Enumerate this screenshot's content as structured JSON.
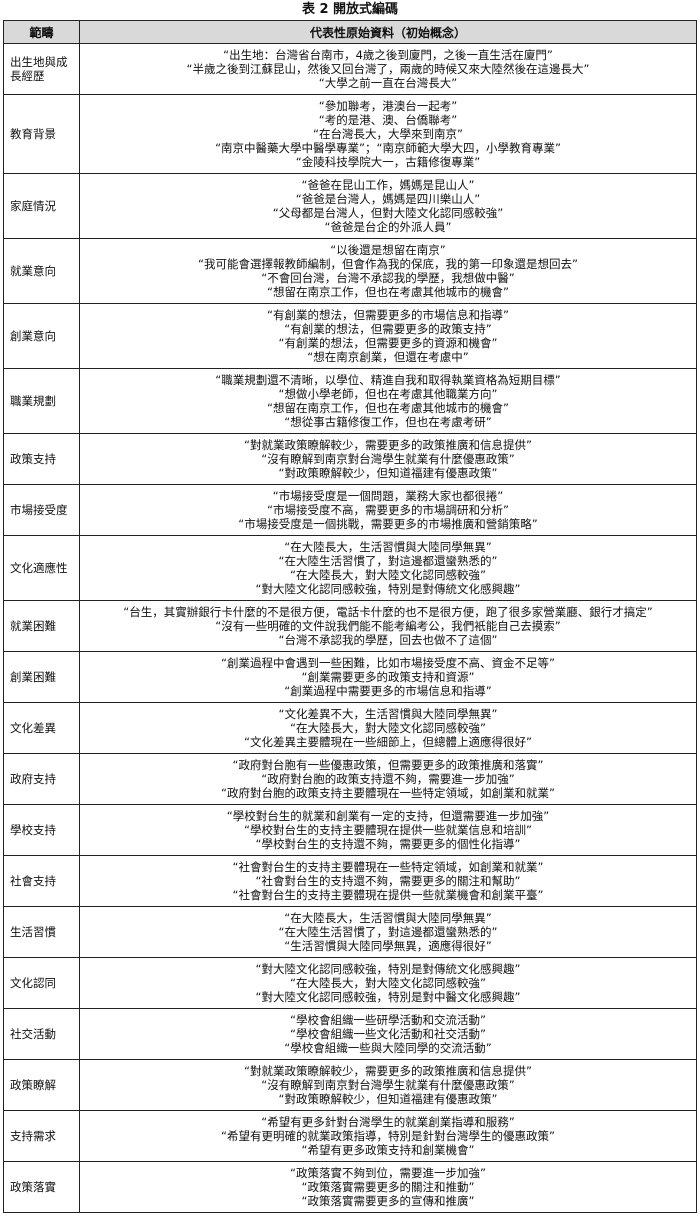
{
  "title": "表 2 開放式編碼",
  "table": {
    "headers": [
      "範疇",
      "代表性原始資料（初始概念）"
    ],
    "rows": [
      {
        "category": "出生地與成長經歷",
        "quotes": [
          "“出生地：台灣省台南市，4歲之後到廈門，之後一直生活在廈門”",
          "“半歲之後到江蘇昆山，然後又回台灣了，兩歲的時候又來大陸然後在這邊長大”",
          "“大學之前一直在台灣長大”"
        ]
      },
      {
        "category": "教育背景",
        "quotes": [
          "“參加聯考，港澳台一起考”",
          "“考的是港、澳、台僑聯考”",
          "“在台灣長大，大學來到南京”",
          "“南京中醫藥大學中醫學專業”；“南京師範大學大四，小學教育專業”",
          "“金陵科技學院大一，古籍修復專業”"
        ]
      },
      {
        "category": "家庭情況",
        "quotes": [
          "“爸爸在昆山工作，媽媽是昆山人”",
          "“爸爸是台灣人，媽媽是四川樂山人”",
          "“父母都是台灣人，但對大陸文化認同感較強”",
          "“爸爸是台企的外派人員”"
        ]
      },
      {
        "category": "就業意向",
        "quotes": [
          "“以後還是想留在南京”",
          "“我可能會選擇報教師編制，但會作為我的保底，我的第一印象還是想回去”",
          "“不會回台灣，台灣不承認我的學歷，我想做中醫”",
          "“想留在南京工作，但也在考慮其他城市的機會”"
        ]
      },
      {
        "category": "創業意向",
        "quotes": [
          "“有創業的想法，但需要更多的市場信息和指導”",
          "“有創業的想法，但需要更多的政策支持”",
          "“有創業的想法，但需要更多的資源和機會”",
          "“想在南京創業，但還在考慮中”"
        ]
      },
      {
        "category": "職業規劃",
        "quotes": [
          "“職業規劃還不清晰，以學位、精進自我和取得執業資格為短期目標”",
          "“想做小學老師，但也在考慮其他職業方向”",
          "“想留在南京工作，但也在考慮其他城市的機會”",
          "“想從事古籍修復工作，但也在考慮考研”"
        ]
      },
      {
        "category": "政策支持",
        "quotes": [
          "“對就業政策瞭解較少，需要更多的政策推廣和信息提供”",
          "“沒有瞭解到南京對台灣學生就業有什麼優惠政策”",
          "“對政策瞭解較少，但知道福建有優惠政策”"
        ]
      },
      {
        "category": "市場接受度",
        "quotes": [
          "“市場接受度是一個問題，業務大家也都很捲”",
          "“市場接受度不高，需要更多的市場調研和分析”",
          "“市場接受度是一個挑戰，需要更多的市場推廣和營銷策略”"
        ]
      },
      {
        "category": "文化適應性",
        "quotes": [
          "“在大陸長大，生活習慣與大陸同學無異”",
          "“在大陸生活習慣了，對這邊都還蠻熟悉的”",
          "“在大陸長大，對大陸文化認同感較強”",
          "“對大陸文化認同感較強，特別是對傳統文化感興趣”"
        ]
      },
      {
        "category": "就業困難",
        "quotes": [
          "“台生，其實辦銀行卡什麼的不是很方便，電話卡什麼的也不是很方便，跑了很多家營業廳、銀行才搞定”",
          "“沒有一些明確的文件說我們能不能考編考公，我們衹能自己去摸索”",
          "“台灣不承認我的學歷，回去也做不了這個”"
        ]
      },
      {
        "category": "創業困難",
        "quotes": [
          "“創業過程中會遇到一些困難，比如市場接受度不高、資金不足等”",
          "“創業需要更多的政策支持和資源”",
          "“創業過程中需要更多的市場信息和指導”"
        ]
      },
      {
        "category": "文化差異",
        "quotes": [
          "“文化差異不大，生活習慣與大陸同學無異”",
          "“在大陸長大，對大陸文化認同感較強”",
          "“文化差異主要體現在一些細節上，但總體上適應得很好”"
        ]
      },
      {
        "category": "政府支持",
        "quotes": [
          "“政府對台胞有一些優惠政策，但需要更多的政策推廣和落實”",
          "“政府對台胞的政策支持還不夠，需要進一步加強”",
          "“政府對台胞的政策支持主要體現在一些特定領域，如創業和就業”"
        ]
      },
      {
        "category": "學校支持",
        "quotes": [
          "“學校對台生的就業和創業有一定的支持，但還需要進一步加強”",
          "“學校對台生的支持主要體現在提供一些就業信息和培訓”",
          "“學校對台生的支持還不夠，需要更多的個性化指導”"
        ]
      },
      {
        "category": "社會支持",
        "quotes": [
          "“社會對台生的支持主要體現在一些特定領域，如創業和就業”",
          "“社會對台生的支持還不夠，需要更多的關注和幫助”",
          "“社會對台生的支持主要體現在提供一些就業機會和創業平臺”"
        ]
      },
      {
        "category": "生活習慣",
        "quotes": [
          "“在大陸長大，生活習慣與大陸同學無異”",
          "“在大陸生活習慣了，對這邊都還蠻熟悉的”",
          "“生活習慣與大陸同學無異，適應得很好”"
        ]
      },
      {
        "category": "文化認同",
        "quotes": [
          "“對大陸文化認同感較強，特別是對傳統文化感興趣”",
          "“在大陸長大，對大陸文化認同感較強”",
          "“對大陸文化認同感較強，特別是對中醫文化感興趣”"
        ]
      },
      {
        "category": "社交活動",
        "quotes": [
          "“學校會組織一些研學活動和交流活動”",
          "“學校會組織一些文化活動和社交活動”",
          "“學校會組織一些與大陸同學的交流活動”"
        ]
      },
      {
        "category": "政策瞭解",
        "quotes": [
          "“對就業政策瞭解較少，需要更多的政策推廣和信息提供”",
          "“沒有瞭解到南京對台灣學生就業有什麼優惠政策”",
          "“對政策瞭解較少，但知道福建有優惠政策”"
        ]
      },
      {
        "category": "支持需求",
        "quotes": [
          "“希望有更多針對台灣學生的就業創業指導和服務”",
          "“希望有更明確的就業政策指導，特別是針對台灣學生的優惠政策”",
          "“希望有更多政策支持和創業機會”"
        ]
      },
      {
        "category": "政策落實",
        "quotes": [
          "“政策落實不夠到位，需要進一步加強”",
          "“政策落實需要更多的關注和推動”",
          "“政策落實需要更多的宣傳和推廣”"
        ]
      }
    ]
  }
}
